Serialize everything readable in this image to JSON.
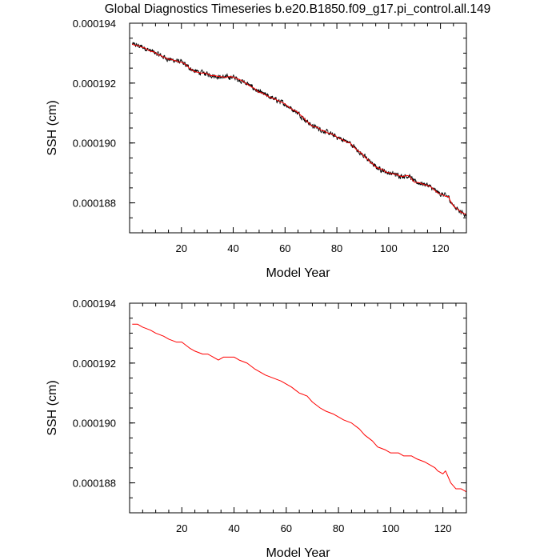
{
  "title": "Global Diagnostics Timeseries b.e20.B1850.f09_g17.pi_control.all.149",
  "chart_data": [
    {
      "type": "line",
      "title": "",
      "xlabel": "Model Year",
      "ylabel": "SSH (cm)",
      "xlim": [
        0,
        130
      ],
      "ylim": [
        0.000187,
        0.000194
      ],
      "x_ticks": [
        20,
        40,
        60,
        80,
        100,
        120
      ],
      "x_tick_labels": [
        "20",
        "40",
        "60",
        "80",
        "100",
        "120"
      ],
      "y_ticks": [
        0.000188,
        0.00019,
        0.000192,
        0.000194
      ],
      "y_tick_labels": [
        "0.000188",
        "0.000190",
        "0.000192",
        "0.000194"
      ],
      "grid": false,
      "series": [
        {
          "style": "monthly",
          "color": "#000000",
          "noise_amplitude": 1.2e-07,
          "x": [
            1,
            5,
            10,
            15,
            20,
            25,
            30,
            35,
            40,
            45,
            50,
            55,
            60,
            65,
            70,
            75,
            80,
            85,
            90,
            95,
            100,
            105,
            108,
            110,
            115,
            118,
            120,
            123,
            125,
            128,
            130
          ],
          "values": [
            0.0001933,
            0.0001932,
            0.000193,
            0.0001928,
            0.0001927,
            0.0001924,
            0.0001923,
            0.0001922,
            0.0001922,
            0.000192,
            0.0001917,
            0.0001915,
            0.0001913,
            0.000191,
            0.0001906,
            0.0001904,
            0.0001902,
            0.00019,
            0.0001896,
            0.0001892,
            0.000189,
            0.0001889,
            0.0001889,
            0.0001887,
            0.0001886,
            0.0001884,
            0.0001883,
            0.0001882,
            0.0001879,
            0.0001877,
            0.0001876
          ]
        },
        {
          "style": "annual",
          "color": "#ff0000",
          "x": [
            1,
            5,
            10,
            15,
            20,
            25,
            30,
            35,
            40,
            45,
            50,
            55,
            60,
            65,
            70,
            75,
            80,
            85,
            90,
            95,
            100,
            105,
            108,
            110,
            115,
            118,
            120,
            123,
            125,
            128,
            130
          ],
          "values": [
            0.0001933,
            0.0001932,
            0.000193,
            0.0001928,
            0.0001927,
            0.0001924,
            0.0001923,
            0.0001922,
            0.0001922,
            0.000192,
            0.0001917,
            0.0001915,
            0.0001913,
            0.000191,
            0.0001906,
            0.0001904,
            0.0001902,
            0.00019,
            0.0001896,
            0.0001892,
            0.000189,
            0.0001889,
            0.0001889,
            0.0001887,
            0.0001886,
            0.0001884,
            0.0001883,
            0.0001882,
            0.0001879,
            0.0001877,
            0.0001876
          ]
        }
      ]
    },
    {
      "type": "line",
      "title": "",
      "xlabel": "Model Year",
      "ylabel": "SSH (cm)",
      "xlim": [
        0,
        129
      ],
      "ylim": [
        0.000187,
        0.000194
      ],
      "x_ticks": [
        20,
        40,
        60,
        80,
        100,
        120
      ],
      "x_tick_labels": [
        "20",
        "40",
        "60",
        "80",
        "100",
        "120"
      ],
      "y_ticks": [
        0.000188,
        0.00019,
        0.000192,
        0.000194
      ],
      "y_tick_labels": [
        "0.000188",
        "0.000190",
        "0.000192",
        "0.000194"
      ],
      "grid": false,
      "series": [
        {
          "style": "annual",
          "color": "#ff0000",
          "x": [
            1,
            3,
            5,
            8,
            10,
            13,
            15,
            18,
            20,
            23,
            25,
            28,
            30,
            32,
            34,
            36,
            38,
            40,
            42,
            45,
            48,
            50,
            52,
            55,
            58,
            60,
            62,
            65,
            68,
            70,
            73,
            75,
            78,
            80,
            82,
            85,
            88,
            90,
            93,
            95,
            98,
            100,
            103,
            105,
            108,
            110,
            113,
            115,
            117,
            118,
            120,
            121,
            122,
            123,
            125,
            127,
            129
          ],
          "values": [
            0.0001933,
            0.0001933,
            0.0001932,
            0.0001931,
            0.000193,
            0.0001929,
            0.0001928,
            0.0001927,
            0.0001927,
            0.0001925,
            0.0001924,
            0.0001923,
            0.0001923,
            0.0001922,
            0.0001921,
            0.0001922,
            0.0001922,
            0.0001922,
            0.0001921,
            0.000192,
            0.0001918,
            0.0001917,
            0.0001916,
            0.0001915,
            0.0001914,
            0.0001913,
            0.0001912,
            0.000191,
            0.0001909,
            0.0001907,
            0.0001905,
            0.0001904,
            0.0001903,
            0.0001902,
            0.0001901,
            0.00019,
            0.0001898,
            0.0001896,
            0.0001894,
            0.0001892,
            0.0001891,
            0.000189,
            0.000189,
            0.0001889,
            0.0001889,
            0.0001888,
            0.0001887,
            0.0001886,
            0.0001885,
            0.0001884,
            0.0001883,
            0.0001884,
            0.0001882,
            0.000188,
            0.0001878,
            0.0001878,
            0.0001877
          ]
        }
      ]
    }
  ]
}
